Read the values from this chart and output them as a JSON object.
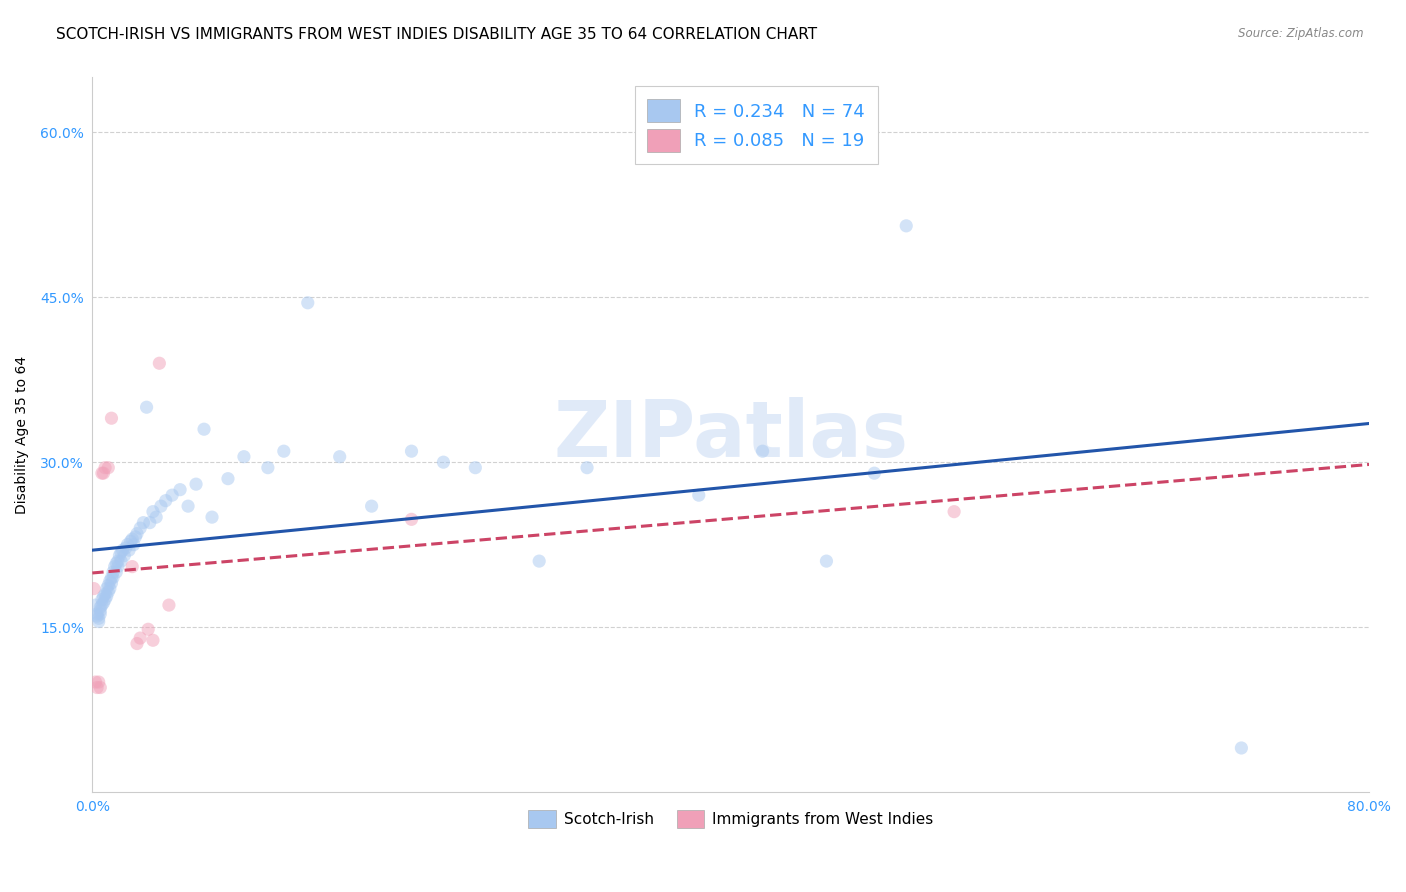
{
  "title": "SCOTCH-IRISH VS IMMIGRANTS FROM WEST INDIES DISABILITY AGE 35 TO 64 CORRELATION CHART",
  "source": "Source: ZipAtlas.com",
  "ylabel": "Disability Age 35 to 64",
  "xlim": [
    0.0,
    0.8
  ],
  "ylim": [
    0.0,
    0.65
  ],
  "ytick_labels": [
    "15.0%",
    "30.0%",
    "45.0%",
    "60.0%"
  ],
  "ytick_values": [
    0.15,
    0.3,
    0.45,
    0.6
  ],
  "xtick_values": [
    0.0,
    0.1,
    0.2,
    0.3,
    0.4,
    0.5,
    0.6,
    0.7,
    0.8
  ],
  "xtick_labels": [
    "0.0%",
    "",
    "",
    "",
    "",
    "",
    "",
    "",
    "80.0%"
  ],
  "grid_color": "#cccccc",
  "background_color": "#ffffff",
  "watermark": "ZIPatlas",
  "series": [
    {
      "name": "Scotch-Irish",
      "R": 0.234,
      "N": 74,
      "marker_color": "#a8c8f0",
      "line_color": "#2255aa",
      "line_style": "solid",
      "x": [
        0.002,
        0.003,
        0.003,
        0.004,
        0.004,
        0.005,
        0.005,
        0.005,
        0.006,
        0.006,
        0.007,
        0.007,
        0.008,
        0.008,
        0.009,
        0.009,
        0.01,
        0.01,
        0.011,
        0.011,
        0.012,
        0.012,
        0.013,
        0.013,
        0.014,
        0.015,
        0.015,
        0.016,
        0.016,
        0.017,
        0.018,
        0.018,
        0.019,
        0.02,
        0.021,
        0.022,
        0.023,
        0.024,
        0.025,
        0.026,
        0.027,
        0.028,
        0.03,
        0.032,
        0.034,
        0.036,
        0.038,
        0.04,
        0.043,
        0.046,
        0.05,
        0.055,
        0.06,
        0.065,
        0.07,
        0.075,
        0.085,
        0.095,
        0.11,
        0.12,
        0.135,
        0.155,
        0.175,
        0.2,
        0.22,
        0.24,
        0.28,
        0.31,
        0.38,
        0.42,
        0.46,
        0.49,
        0.51,
        0.72
      ],
      "y": [
        0.17,
        0.16,
        0.162,
        0.158,
        0.155,
        0.165,
        0.162,
        0.168,
        0.17,
        0.175,
        0.178,
        0.172,
        0.175,
        0.18,
        0.178,
        0.185,
        0.182,
        0.188,
        0.185,
        0.192,
        0.195,
        0.19,
        0.195,
        0.2,
        0.205,
        0.208,
        0.2,
        0.21,
        0.205,
        0.215,
        0.218,
        0.21,
        0.22,
        0.215,
        0.222,
        0.225,
        0.22,
        0.228,
        0.23,
        0.225,
        0.232,
        0.235,
        0.24,
        0.245,
        0.35,
        0.245,
        0.255,
        0.25,
        0.26,
        0.265,
        0.27,
        0.275,
        0.26,
        0.28,
        0.33,
        0.25,
        0.285,
        0.305,
        0.295,
        0.31,
        0.445,
        0.305,
        0.26,
        0.31,
        0.3,
        0.295,
        0.21,
        0.295,
        0.27,
        0.31,
        0.21,
        0.29,
        0.515,
        0.04
      ]
    },
    {
      "name": "Immigrants from West Indies",
      "R": 0.085,
      "N": 19,
      "marker_color": "#f0a0b8",
      "line_color": "#cc4466",
      "line_style": "dashed",
      "x": [
        0.001,
        0.002,
        0.003,
        0.004,
        0.005,
        0.006,
        0.007,
        0.008,
        0.01,
        0.012,
        0.025,
        0.028,
        0.03,
        0.035,
        0.038,
        0.042,
        0.048,
        0.2,
        0.54
      ],
      "y": [
        0.185,
        0.1,
        0.095,
        0.1,
        0.095,
        0.29,
        0.29,
        0.295,
        0.295,
        0.34,
        0.205,
        0.135,
        0.14,
        0.148,
        0.138,
        0.39,
        0.17,
        0.248,
        0.255
      ]
    }
  ],
  "legend_R_color": "#3399ff",
  "legend_N_color": "#3399ff",
  "legend_label_color": "#333333",
  "tick_color": "#3399ff",
  "title_fontsize": 11,
  "axis_label_fontsize": 10,
  "tick_fontsize": 10,
  "marker_size": 90,
  "marker_alpha": 0.5,
  "line_width": 2.2
}
